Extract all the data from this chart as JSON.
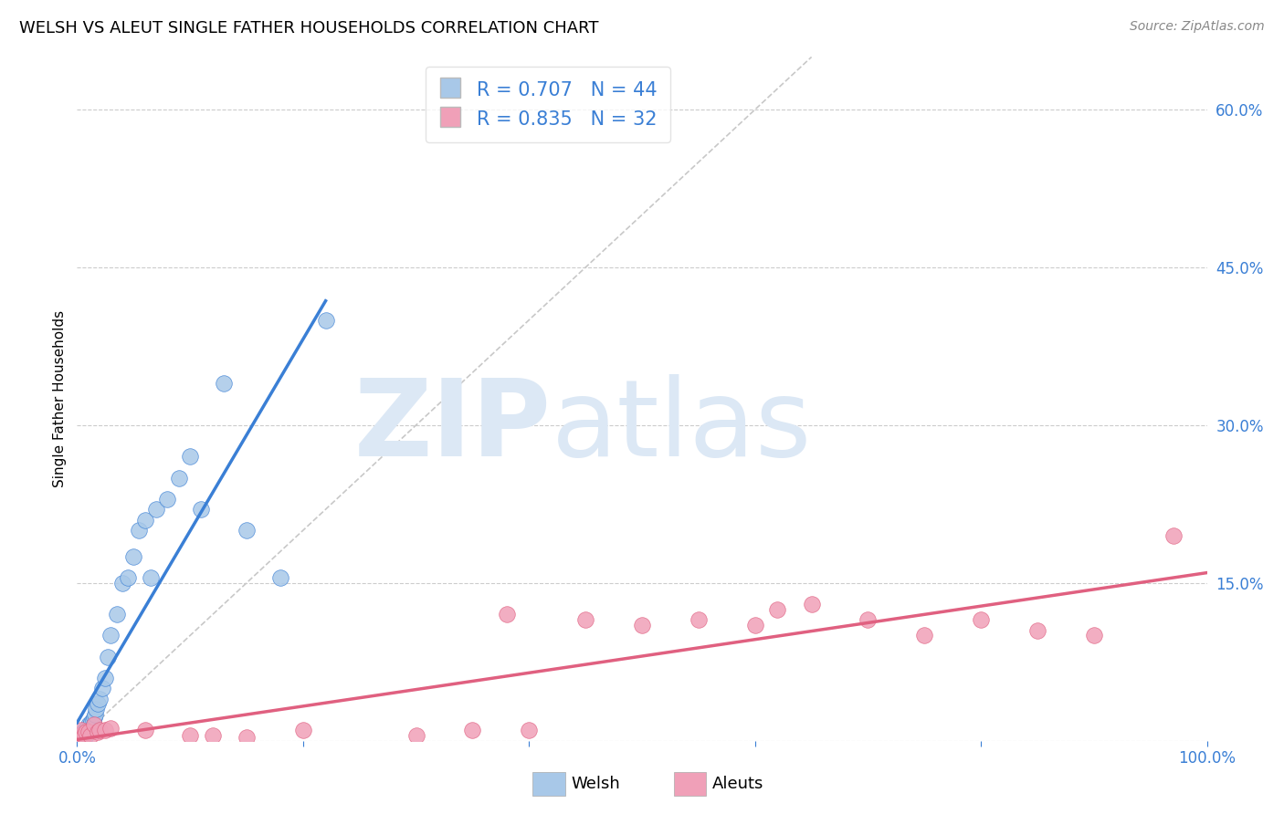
{
  "title": "WELSH VS ALEUT SINGLE FATHER HOUSEHOLDS CORRELATION CHART",
  "source": "Source: ZipAtlas.com",
  "ylabel": "Single Father Households",
  "xlim": [
    0,
    1.0
  ],
  "ylim": [
    0,
    0.65
  ],
  "ytick_positions": [
    0.0,
    0.15,
    0.3,
    0.45,
    0.6
  ],
  "yticklabels": [
    "",
    "15.0%",
    "30.0%",
    "45.0%",
    "60.0%"
  ],
  "welsh_color": "#a8c8e8",
  "aleut_color": "#f0a0b8",
  "welsh_line_color": "#3a7fd5",
  "aleut_line_color": "#e06080",
  "diagonal_color": "#c8c8c8",
  "legend_text_color": "#3a7fd5",
  "R_welsh": 0.707,
  "N_welsh": 44,
  "R_aleut": 0.835,
  "N_aleut": 32,
  "welsh_x": [
    0.002,
    0.003,
    0.004,
    0.005,
    0.005,
    0.006,
    0.006,
    0.007,
    0.007,
    0.008,
    0.008,
    0.009,
    0.009,
    0.01,
    0.01,
    0.011,
    0.012,
    0.013,
    0.014,
    0.015,
    0.016,
    0.017,
    0.018,
    0.02,
    0.022,
    0.025,
    0.027,
    0.03,
    0.035,
    0.04,
    0.045,
    0.05,
    0.055,
    0.06,
    0.065,
    0.07,
    0.08,
    0.09,
    0.1,
    0.11,
    0.13,
    0.15,
    0.18,
    0.22
  ],
  "welsh_y": [
    0.005,
    0.003,
    0.004,
    0.004,
    0.008,
    0.005,
    0.007,
    0.006,
    0.01,
    0.005,
    0.01,
    0.012,
    0.008,
    0.015,
    0.01,
    0.012,
    0.015,
    0.018,
    0.02,
    0.022,
    0.025,
    0.03,
    0.035,
    0.04,
    0.05,
    0.06,
    0.08,
    0.1,
    0.12,
    0.15,
    0.155,
    0.175,
    0.2,
    0.21,
    0.155,
    0.22,
    0.23,
    0.25,
    0.27,
    0.22,
    0.34,
    0.2,
    0.155,
    0.4
  ],
  "aleut_x": [
    0.002,
    0.004,
    0.006,
    0.008,
    0.01,
    0.012,
    0.015,
    0.018,
    0.02,
    0.025,
    0.03,
    0.06,
    0.1,
    0.12,
    0.15,
    0.2,
    0.3,
    0.35,
    0.38,
    0.4,
    0.45,
    0.5,
    0.55,
    0.6,
    0.62,
    0.65,
    0.7,
    0.75,
    0.8,
    0.85,
    0.9,
    0.97
  ],
  "aleut_y": [
    0.005,
    0.01,
    0.005,
    0.008,
    0.008,
    0.005,
    0.015,
    0.008,
    0.01,
    0.01,
    0.012,
    0.01,
    0.005,
    0.005,
    0.003,
    0.01,
    0.005,
    0.01,
    0.12,
    0.01,
    0.115,
    0.11,
    0.115,
    0.11,
    0.125,
    0.13,
    0.115,
    0.1,
    0.115,
    0.105,
    0.1,
    0.195
  ],
  "background_color": "#ffffff",
  "watermark_zip": "ZIP",
  "watermark_atlas": "atlas",
  "watermark_color": "#dce8f5"
}
